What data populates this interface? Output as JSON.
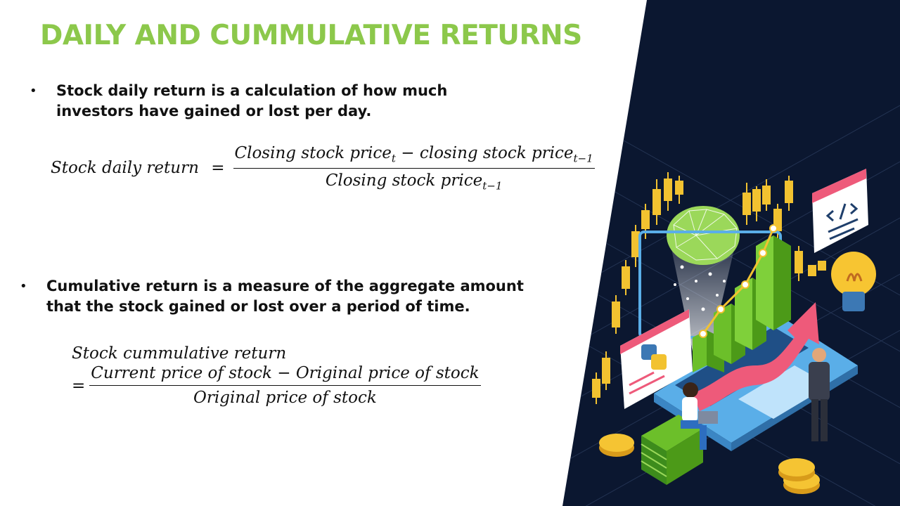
{
  "slide": {
    "title": "DAILY AND CUMMULATIVE RETURNS",
    "bullets": [
      "Stock daily return is a calculation of how much investors have gained or lost per day.",
      "Cumulative return is a measure of the aggregate amount that the stock gained or lost over a period of time."
    ],
    "bullet_symbol": "•"
  },
  "formula_daily": {
    "lhs": "Stock daily return",
    "equals": "=",
    "numerator_a": "Closing stock price",
    "numerator_a_sub": "t",
    "minus": "−",
    "numerator_b": "closing stock price",
    "numerator_b_sub": "t−1",
    "denominator": "Closing stock price",
    "denominator_sub": "t−1"
  },
  "formula_cumulative": {
    "lhs": "Stock cummulative return",
    "equals": "=",
    "numerator": "Current price of stock  − Original price of stock",
    "denominator": "Original price of stock"
  },
  "colors": {
    "title": "#8cc84b",
    "dark_panel": "#0b1730",
    "candle": "#f2c230",
    "green_bar": "#6cbf2a",
    "arrow": "#ee5a7a",
    "laptop": "#5aaee8"
  },
  "illustration": {
    "icons": [
      "candlestick-chart-icon",
      "brain-icon",
      "bar-chart-icon",
      "laptop-icon",
      "python-logo-icon",
      "code-window-icon",
      "lightbulb-icon",
      "rising-arrow-icon",
      "coin-icon",
      "money-stack-icon",
      "person-sitting-icon",
      "person-standing-icon"
    ]
  }
}
